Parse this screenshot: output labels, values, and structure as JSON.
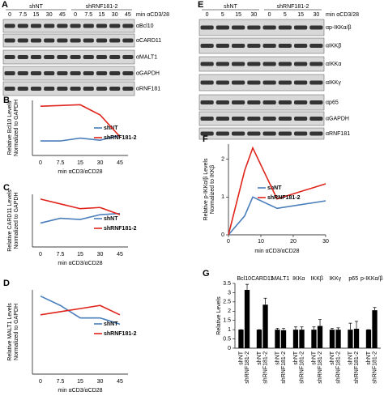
{
  "blots": [
    {
      "label": "A",
      "groups": [
        "shNT",
        "shRNF181-2"
      ],
      "lanes": [
        0,
        7.5,
        15,
        30,
        45
      ],
      "treatment": "min αCD3/28",
      "rows": [
        "αBcl10",
        "αCARD11",
        "αMALT1",
        "αGAPDH",
        "αRNF181"
      ]
    },
    {
      "label": "E",
      "groups": [
        "shNT",
        "shRNF181-2"
      ],
      "lanes": [
        0,
        5,
        15,
        30
      ],
      "treatment": "min αCD3/28",
      "rows": [
        "αp-IKKα/β",
        "αIKKβ",
        "αIKKα",
        "αIKKγ",
        "αp65",
        "αGAPDH",
        "αRNF181"
      ]
    }
  ],
  "chart_data": [
    {
      "label": "B",
      "type": "line",
      "categories": [
        0,
        7.5,
        15,
        30,
        45
      ],
      "ylim": [
        0,
        3.8
      ],
      "ylabel": [
        "Relative Bcl10 Levels",
        "Normalized to GAPDH"
      ],
      "xlabel": "min αCD3/αCD28",
      "series": [
        {
          "name": "shNT",
          "color": "#4a7ebb",
          "values": [
            1,
            1,
            1.2,
            1.05,
            1.4
          ]
        },
        {
          "name": "shRNF181-2",
          "color": "#e0241b",
          "values": [
            3.4,
            3.45,
            3.5,
            2.8,
            1.3
          ]
        }
      ]
    },
    {
      "label": "C",
      "type": "line",
      "categories": [
        0,
        7.5,
        15,
        30,
        45
      ],
      "ylim": [
        0,
        2.2
      ],
      "ylabel": [
        "Relative CARD11 Levels",
        "Normalized to GAPDH"
      ],
      "xlabel": "min αCD3/αCD28",
      "series": [
        {
          "name": "shNT",
          "color": "#4a7ebb",
          "values": [
            1,
            1.2,
            1.15,
            1.35,
            1.4
          ]
        },
        {
          "name": "shRNF181-2",
          "color": "#e0241b",
          "values": [
            2,
            1.8,
            1.6,
            1.65,
            1.35
          ]
        }
      ]
    },
    {
      "label": "D",
      "type": "line",
      "categories": [
        0,
        7.5,
        15,
        30,
        45
      ],
      "ylim": [
        0,
        1.35
      ],
      "ylabel": [
        "Relative MALT1 Levels",
        "Normalized to GAPDH"
      ],
      "xlabel": "min αCD3/αCD28",
      "series": [
        {
          "name": "shNT",
          "color": "#4a7ebb",
          "values": [
            1.25,
            1.1,
            0.9,
            0.9,
            0.8
          ]
        },
        {
          "name": "shRNF181-2",
          "color": "#e0241b",
          "values": [
            0.95,
            1,
            1.05,
            1.1,
            0.95
          ]
        }
      ]
    },
    {
      "label": "F",
      "type": "line",
      "x": [
        0,
        5,
        7.5,
        15,
        30
      ],
      "xlim": [
        0,
        30
      ],
      "xticks": [
        0,
        10,
        20,
        30
      ],
      "ylim": [
        0,
        2.4
      ],
      "yticks": [
        0,
        1,
        2
      ],
      "ylabel": [
        "Relative p-IKKα/β Levels",
        "Normalized to IKKβ"
      ],
      "xlabel": "min αCD3/αCD28",
      "series": [
        {
          "name": "shNT",
          "color": "#4a7ebb",
          "values": [
            0,
            0.5,
            1,
            0.7,
            0.9
          ]
        },
        {
          "name": "shRNF181-2",
          "color": "#e0241b",
          "values": [
            0,
            1.7,
            2.3,
            0.95,
            1.35
          ]
        }
      ]
    },
    {
      "label": "G",
      "type": "bar",
      "categories": [
        "Bcl10",
        "CARD11",
        "MALT1",
        "IKKα",
        "IKKβ",
        "IKKγ",
        "p65",
        "p-IKKα/β"
      ],
      "ylim": [
        0,
        3.5
      ],
      "yticks": [
        0,
        0.5,
        1,
        1.5,
        2,
        2.5,
        3,
        3.5
      ],
      "ylabel": [
        "Relative Levels"
      ],
      "series": [
        {
          "name": "shNT",
          "color": "#000000",
          "values": [
            1,
            1,
            1,
            1,
            1,
            1,
            1,
            1
          ],
          "errors": [
            0,
            0,
            0.08,
            0.15,
            0.15,
            0.08,
            0.35,
            0
          ]
        },
        {
          "name": "shRNF181-2",
          "color": "#000000",
          "values": [
            3.15,
            2.35,
            0.97,
            1,
            1.2,
            1,
            1.05,
            2.05
          ],
          "errors": [
            0.3,
            0.35,
            0.1,
            0.15,
            0.35,
            0.1,
            0.4,
            0.15
          ]
        }
      ]
    }
  ]
}
